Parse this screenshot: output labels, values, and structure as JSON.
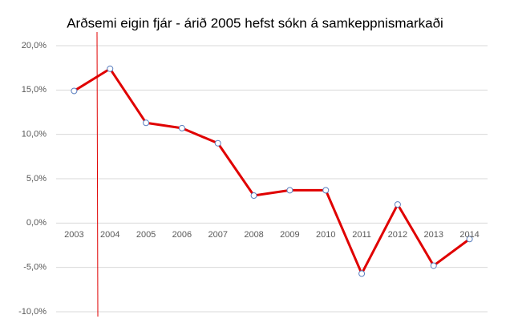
{
  "chart_data": {
    "type": "line",
    "title": "Arðsemi eigin fjár - árið 2005 hefst sókn á samkeppnismarkaði",
    "categories": [
      "2003",
      "2004",
      "2005",
      "2006",
      "2007",
      "2008",
      "2009",
      "2010",
      "2011",
      "2012",
      "2013",
      "2014"
    ],
    "series": [
      {
        "name": "Arðsemi eigin fjár",
        "color": "#e00000",
        "values": [
          14.9,
          17.4,
          11.3,
          10.7,
          9.0,
          3.1,
          3.7,
          3.7,
          -5.7,
          2.1,
          -4.8,
          -1.8
        ]
      }
    ],
    "ylim": [
      -10,
      20
    ],
    "yticks": [
      {
        "value": -10,
        "label": "-10,0%"
      },
      {
        "value": -5,
        "label": "-5,0%"
      },
      {
        "value": 0,
        "label": "0,0%"
      },
      {
        "value": 5,
        "label": "5,0%"
      },
      {
        "value": 10,
        "label": "10,0%"
      },
      {
        "value": 15,
        "label": "15,0%"
      },
      {
        "value": 20,
        "label": "20,0%"
      }
    ],
    "grid": true
  }
}
